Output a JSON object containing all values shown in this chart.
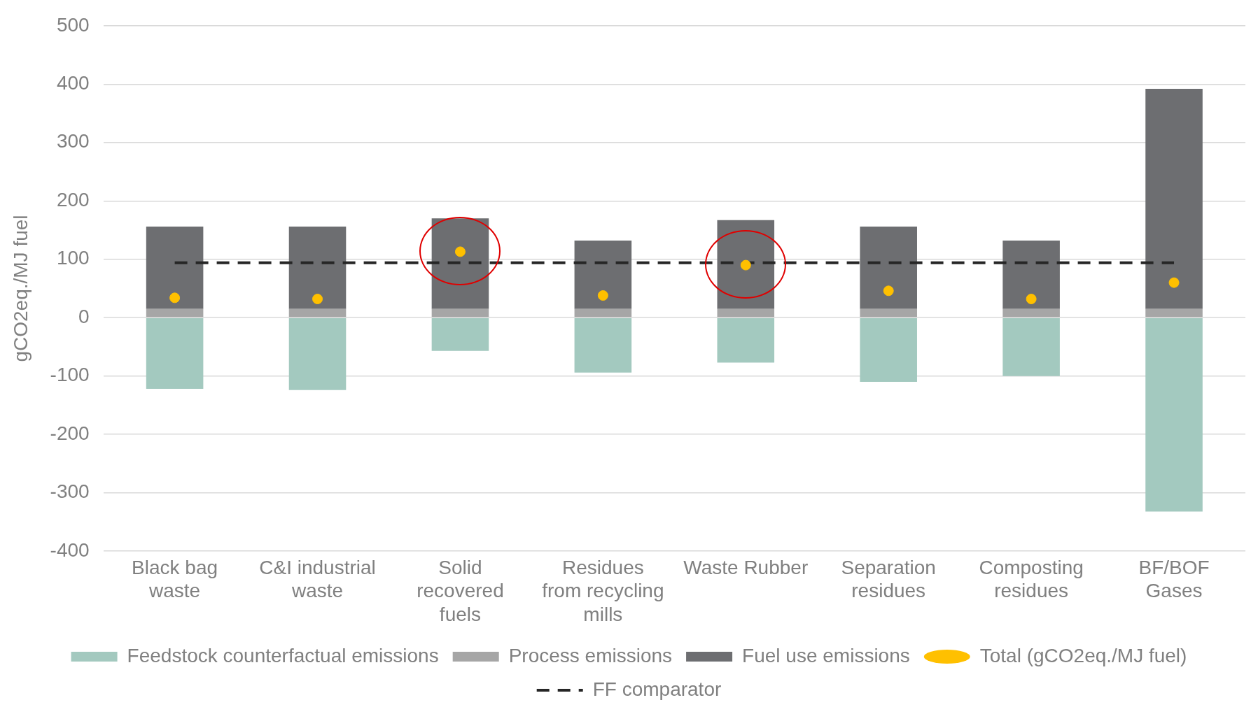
{
  "chart_data": {
    "type": "bar",
    "stacked": true,
    "ylabel": "gCO2eq./MJ fuel",
    "categories": [
      "Black bag waste",
      "C&I industrial waste",
      "Solid recovered fuels",
      "Residues from recycling mills",
      "Waste Rubber",
      "Separation residues",
      "Composting residues",
      "BF/BOF Gases"
    ],
    "series": [
      {
        "name": "Feedstock counterfactual emissions",
        "color": "#a3c9bf",
        "values": [
          -122,
          -124,
          -57,
          -94,
          -77,
          -110,
          -100,
          -332
        ]
      },
      {
        "name": "Process emissions",
        "color": "#a6a6a6",
        "values": [
          15,
          15,
          15,
          15,
          15,
          15,
          15,
          15
        ]
      },
      {
        "name": "Fuel use emissions",
        "color": "#6d6e71",
        "values": [
          141,
          141,
          155,
          117,
          152,
          141,
          117,
          377
        ]
      },
      {
        "name": "Total (gCO2eq./MJ fuel)",
        "type": "scatter",
        "color": "#ffc000",
        "marker": "circle",
        "x": [
          "Black bag waste",
          "C&I industrial waste",
          "Solid recovered fuels",
          "Residues from recycling mills",
          "Waste Rubber",
          "Separation residues",
          "Composting residues",
          "BF/BOF Gases"
        ],
        "values": [
          34,
          32,
          113,
          38,
          90,
          46,
          32,
          60
        ]
      },
      {
        "name": "FF comparator",
        "type": "line",
        "color": "#262626",
        "line_style": "dashed",
        "marker": "none",
        "values": [
          94,
          94,
          94,
          94,
          94,
          94,
          94,
          94
        ]
      }
    ],
    "ylim": [
      -400,
      500
    ],
    "yticks": [
      -400,
      -300,
      -200,
      -100,
      0,
      100,
      200,
      300,
      400,
      500
    ],
    "grid": "y",
    "legend": "bottom"
  }
}
